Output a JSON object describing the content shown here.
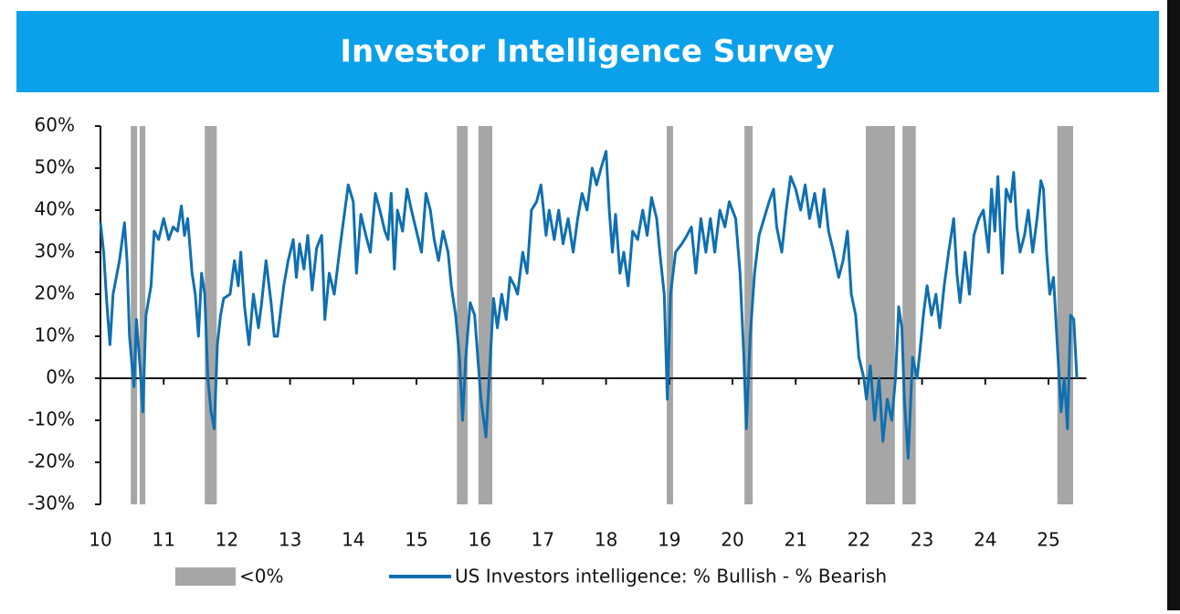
{
  "chart_data": {
    "type": "line",
    "title": "Investor Intelligence Survey",
    "x": [
      10.0,
      10.05,
      10.1,
      10.15,
      10.2,
      10.3,
      10.38,
      10.42,
      10.46,
      10.5,
      10.53,
      10.57,
      10.63,
      10.67,
      10.72,
      10.8,
      10.85,
      10.92,
      11.0,
      11.08,
      11.15,
      11.22,
      11.28,
      11.33,
      11.38,
      11.45,
      11.5,
      11.55,
      11.6,
      11.65,
      11.7,
      11.75,
      11.8,
      11.85,
      11.9,
      11.95,
      12.05,
      12.12,
      12.18,
      12.22,
      12.28,
      12.35,
      12.42,
      12.5,
      12.55,
      12.62,
      12.7,
      12.75,
      12.8,
      12.9,
      12.97,
      13.05,
      13.1,
      13.15,
      13.22,
      13.28,
      13.35,
      13.42,
      13.5,
      13.55,
      13.62,
      13.7,
      13.78,
      13.85,
      13.92,
      14.0,
      14.05,
      14.12,
      14.2,
      14.27,
      14.35,
      14.42,
      14.5,
      14.55,
      14.6,
      14.65,
      14.7,
      14.78,
      14.85,
      14.92,
      15.0,
      15.08,
      15.15,
      15.22,
      15.28,
      15.35,
      15.42,
      15.5,
      15.55,
      15.62,
      15.68,
      15.73,
      15.78,
      15.85,
      15.92,
      15.97,
      16.02,
      16.1,
      16.15,
      16.22,
      16.28,
      16.35,
      16.42,
      16.48,
      16.55,
      16.6,
      16.68,
      16.75,
      16.82,
      16.9,
      16.97,
      17.05,
      17.1,
      17.18,
      17.25,
      17.32,
      17.4,
      17.48,
      17.55,
      17.62,
      17.7,
      17.78,
      17.85,
      17.92,
      18.0,
      18.05,
      18.1,
      18.15,
      18.22,
      18.28,
      18.35,
      18.42,
      18.5,
      18.58,
      18.65,
      18.72,
      18.8,
      18.85,
      18.92,
      18.97,
      19.02,
      19.1,
      19.2,
      19.28,
      19.35,
      19.42,
      19.5,
      19.58,
      19.65,
      19.72,
      19.8,
      19.88,
      19.95,
      20.05,
      20.12,
      20.18,
      20.22,
      20.28,
      20.35,
      20.42,
      20.5,
      20.58,
      20.65,
      20.7,
      20.78,
      20.85,
      20.92,
      21.0,
      21.08,
      21.15,
      21.22,
      21.3,
      21.38,
      21.45,
      21.52,
      21.6,
      21.68,
      21.75,
      21.82,
      21.88,
      21.95,
      22.0,
      22.08,
      22.12,
      22.18,
      22.25,
      22.32,
      22.38,
      22.45,
      22.52,
      22.58,
      22.63,
      22.68,
      22.72,
      22.78,
      22.85,
      22.92,
      22.97,
      23.02,
      23.08,
      23.15,
      23.22,
      23.28,
      23.35,
      23.42,
      23.5,
      23.55,
      23.6,
      23.68,
      23.75,
      23.82,
      23.9,
      23.97,
      24.05,
      24.1,
      24.15,
      24.2,
      24.27,
      24.33,
      24.4,
      24.45,
      24.5,
      24.55,
      24.62,
      24.68,
      24.75,
      24.82,
      24.88,
      24.92,
      24.97,
      25.02,
      25.08,
      25.15,
      25.2,
      25.25,
      25.3,
      25.35,
      25.4,
      25.45
    ],
    "series": [
      {
        "name": "US Investors intelligence: % Bullish - % Bearish",
        "color": "#0f6fb0",
        "values": [
          37,
          30,
          18,
          8,
          20,
          28,
          37,
          28,
          10,
          3,
          -2,
          14,
          2,
          -8,
          15,
          22,
          35,
          33,
          38,
          33,
          36,
          35,
          41,
          34,
          38,
          25,
          20,
          10,
          25,
          20,
          0,
          -8,
          -12,
          8,
          15,
          19,
          20,
          28,
          22,
          30,
          17,
          8,
          20,
          12,
          18,
          28,
          18,
          10,
          10,
          22,
          28,
          33,
          24,
          32,
          26,
          34,
          21,
          31,
          34,
          14,
          25,
          20,
          30,
          38,
          46,
          42,
          25,
          39,
          34,
          30,
          44,
          40,
          35,
          33,
          44,
          26,
          40,
          35,
          45,
          40,
          35,
          30,
          44,
          40,
          33,
          28,
          35,
          30,
          22,
          15,
          5,
          -10,
          5,
          18,
          15,
          5,
          -5,
          -14,
          0,
          19,
          12,
          20,
          14,
          24,
          22,
          20,
          30,
          25,
          40,
          42,
          46,
          34,
          40,
          33,
          40,
          32,
          38,
          30,
          38,
          44,
          40,
          50,
          46,
          50,
          54,
          40,
          30,
          39,
          25,
          30,
          22,
          35,
          33,
          40,
          34,
          43,
          38,
          30,
          20,
          -5,
          20,
          30,
          32,
          34,
          36,
          25,
          38,
          30,
          38,
          30,
          40,
          36,
          42,
          38,
          25,
          5,
          -12,
          10,
          25,
          34,
          38,
          42,
          45,
          36,
          30,
          40,
          48,
          45,
          40,
          46,
          38,
          44,
          36,
          45,
          35,
          30,
          24,
          28,
          35,
          20,
          15,
          5,
          0,
          -5,
          3,
          -10,
          0,
          -15,
          -5,
          -10,
          0,
          17,
          12,
          -5,
          -19,
          5,
          0,
          7,
          15,
          22,
          15,
          20,
          12,
          22,
          30,
          38,
          25,
          18,
          30,
          20,
          34,
          38,
          40,
          30,
          45,
          35,
          48,
          25,
          45,
          42,
          49,
          36,
          30,
          34,
          40,
          30,
          38,
          47,
          45,
          30,
          20,
          24,
          5,
          -8,
          0,
          -12,
          15,
          14,
          0
        ]
      }
    ],
    "shaded": {
      "name": "<0%",
      "color": "#a6a6a6",
      "ranges": [
        [
          10.48,
          10.58
        ],
        [
          10.62,
          10.71
        ],
        [
          11.65,
          11.84
        ],
        [
          15.64,
          15.81
        ],
        [
          15.98,
          16.2
        ],
        [
          18.96,
          19.06
        ],
        [
          20.19,
          20.32
        ],
        [
          22.11,
          22.57
        ],
        [
          22.69,
          22.9
        ],
        [
          25.14,
          25.39
        ]
      ]
    },
    "xlim": [
      10,
      25.6
    ],
    "xticks": [
      10,
      11,
      12,
      13,
      14,
      15,
      16,
      17,
      18,
      19,
      20,
      21,
      22,
      23,
      24,
      25
    ],
    "ylim": [
      -30,
      60
    ],
    "yticks": [
      {
        "value": -30,
        "label": "-30%"
      },
      {
        "value": -20,
        "label": "-20%"
      },
      {
        "value": -10,
        "label": "-10%"
      },
      {
        "value": 0,
        "label": "0%"
      },
      {
        "value": 10,
        "label": "10%"
      },
      {
        "value": 20,
        "label": "20%"
      },
      {
        "value": 30,
        "label": "30%"
      },
      {
        "value": 40,
        "label": "40%"
      },
      {
        "value": 50,
        "label": "50%"
      },
      {
        "value": 60,
        "label": "60%"
      }
    ]
  }
}
